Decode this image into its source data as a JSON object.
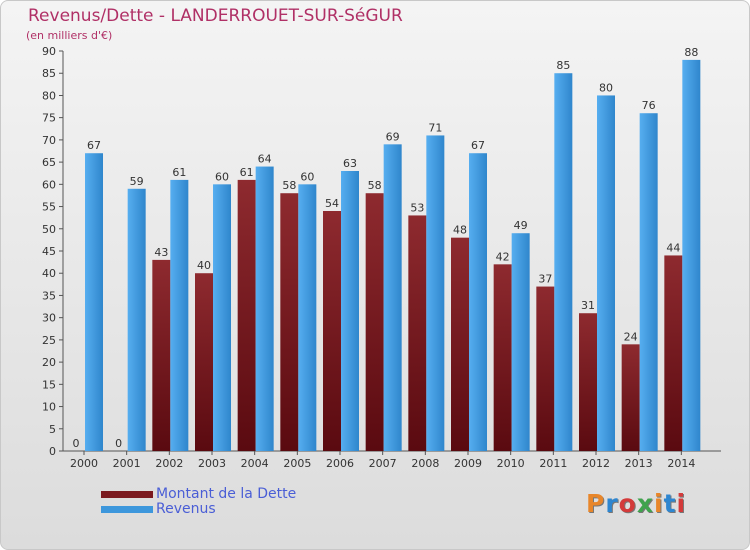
{
  "chart_data": {
    "type": "bar",
    "title": "Revenus/Dette - LANDERROUET-SUR-SéGUR",
    "subtitle": "(en milliers d'€)",
    "categories": [
      "2000",
      "2001",
      "2002",
      "2003",
      "2004",
      "2005",
      "2006",
      "2007",
      "2008",
      "2009",
      "2010",
      "2011",
      "2012",
      "2013",
      "2014"
    ],
    "series": [
      {
        "name": "Montant de la Dette",
        "values": [
          0,
          0,
          43,
          40,
          61,
          58,
          54,
          58,
          53,
          48,
          42,
          37,
          31,
          24,
          44
        ],
        "color": "#7b1a1f"
      },
      {
        "name": "Revenus",
        "values": [
          67,
          59,
          61,
          60,
          64,
          60,
          63,
          69,
          71,
          67,
          49,
          85,
          80,
          76,
          88
        ],
        "color": "#3d97dc"
      }
    ],
    "ylim": [
      0,
      90
    ],
    "ytick_step": 5,
    "grid": false,
    "legend": "bottom-left"
  },
  "logo": {
    "text": "Proxiti",
    "colors": [
      "#e8862a",
      "#2e86d0",
      "#d43a3a",
      "#3fa34d",
      "#e8862a",
      "#2e86d0",
      "#d43a3a"
    ]
  }
}
